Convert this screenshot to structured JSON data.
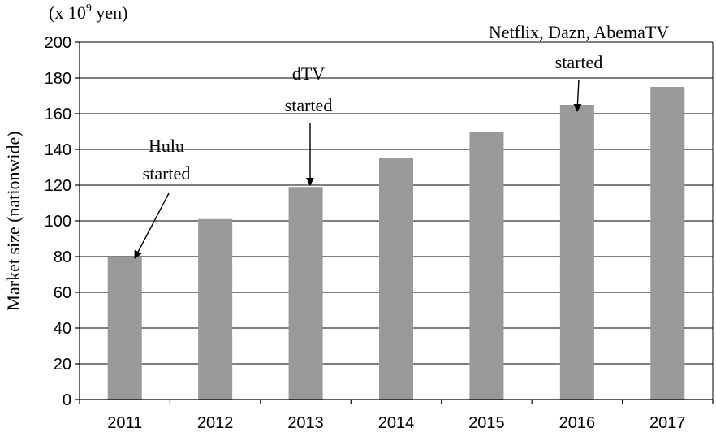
{
  "chart_data": {
    "type": "bar",
    "title": "",
    "unit_label": "(x 10",
    "unit_exp": "9",
    "unit_suffix": " yen)",
    "ylabel": "Market size (nationwide)",
    "xlabel": "",
    "categories": [
      "2011",
      "2012",
      "2013",
      "2014",
      "2015",
      "2016",
      "2017"
    ],
    "values": [
      80,
      101,
      119,
      135,
      150,
      165,
      175
    ],
    "ylim": [
      0,
      200
    ],
    "yticks": [
      0,
      20,
      40,
      60,
      80,
      100,
      120,
      140,
      160,
      180,
      200
    ],
    "grid": true,
    "bar_color": "#999999",
    "annotations": [
      {
        "category": "2011",
        "lines": [
          "Hulu",
          "started"
        ]
      },
      {
        "category": "2013",
        "lines": [
          "dTV",
          "started"
        ]
      },
      {
        "category": "2016",
        "lines": [
          "Netflix, Dazn, AbemaTV",
          "started"
        ]
      }
    ]
  }
}
